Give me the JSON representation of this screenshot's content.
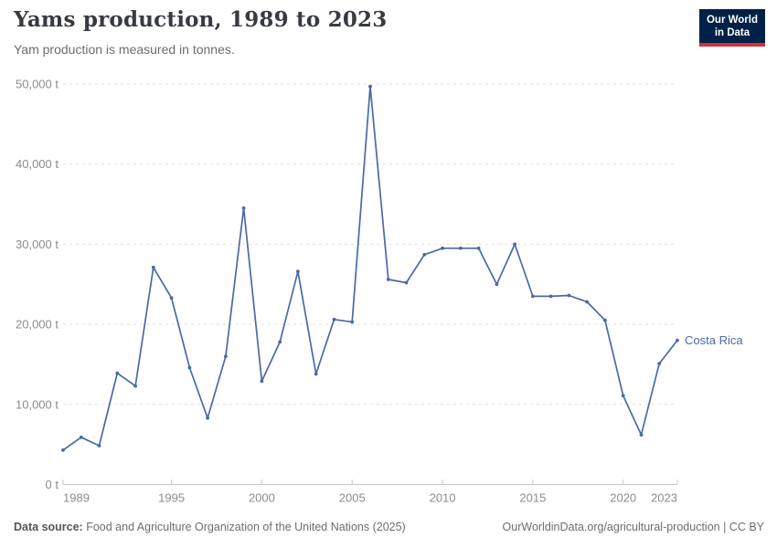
{
  "header": {
    "title": "Yams production, 1989 to 2023",
    "subtitle": "Yam production is measured in tonnes."
  },
  "logo": {
    "line1": "Our World",
    "line2": "in Data",
    "bg_color": "#002147",
    "bar_color": "#d2323c"
  },
  "footer": {
    "source_label": "Data source:",
    "source_text": " Food and Agriculture Organization of the United Nations (2025)",
    "right_text": "OurWorldinData.org/agricultural-production | CC BY"
  },
  "chart_data": {
    "type": "line",
    "title": "Yams production, 1989 to 2023",
    "ylabel": "",
    "xlabel": "",
    "unit": "t",
    "grid": "horizontal-dashed",
    "legend_position": "end-of-line-label",
    "xlim": [
      1989,
      2023
    ],
    "ylim": [
      0,
      50000
    ],
    "x": [
      1989,
      1990,
      1991,
      1992,
      1993,
      1994,
      1995,
      1996,
      1997,
      1998,
      1999,
      2000,
      2001,
      2002,
      2003,
      2004,
      2005,
      2006,
      2007,
      2008,
      2009,
      2010,
      2011,
      2012,
      2013,
      2014,
      2015,
      2016,
      2017,
      2018,
      2019,
      2020,
      2021,
      2022,
      2023
    ],
    "series": [
      {
        "name": "Costa Rica",
        "color": "#4a6aa5",
        "values": [
          4300,
          5900,
          4850,
          13900,
          12300,
          27100,
          23300,
          14600,
          8300,
          16000,
          34500,
          12900,
          17800,
          26600,
          13800,
          20600,
          20300,
          49700,
          25600,
          25200,
          28700,
          29500,
          29500,
          29500,
          25000,
          30000,
          23500,
          23500,
          23600,
          22800,
          20500,
          11100,
          6200,
          15100,
          18000
        ]
      }
    ],
    "xticks": [
      1989,
      1995,
      2000,
      2005,
      2010,
      2015,
      2020,
      2023
    ],
    "yticks": [
      {
        "value": 0,
        "label": "0 t"
      },
      {
        "value": 10000,
        "label": "10,000 t"
      },
      {
        "value": 20000,
        "label": "20,000 t"
      },
      {
        "value": 30000,
        "label": "30,000 t"
      },
      {
        "value": 40000,
        "label": "40,000 t"
      },
      {
        "value": 50000,
        "label": "50,000 t"
      }
    ]
  }
}
